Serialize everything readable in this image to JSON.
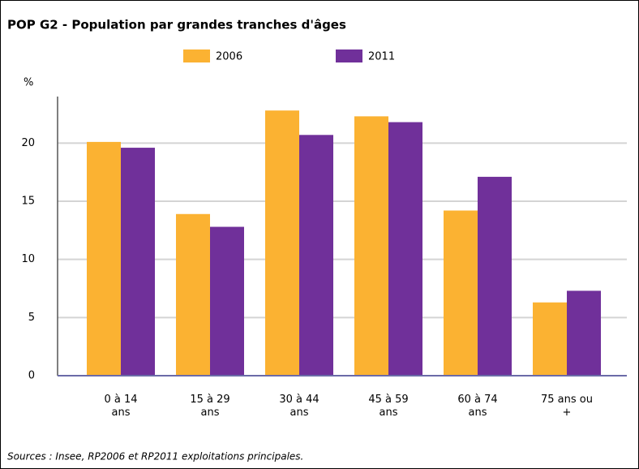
{
  "chart_data": {
    "type": "bar",
    "title": "POP G2 - Population par grandes tranches d'âges",
    "y_label": "%",
    "categories": [
      "0 à 14 ans",
      "15 à 29 ans",
      "30 à 44 ans",
      "45 à 59 ans",
      "60 à 74 ans",
      "75 ans ou +"
    ],
    "series": [
      {
        "name": "2006",
        "color": "#fbb232",
        "values": [
          20.1,
          13.9,
          22.8,
          22.3,
          14.2,
          6.3
        ]
      },
      {
        "name": "2011",
        "color": "#70309a",
        "values": [
          19.6,
          12.8,
          20.7,
          21.8,
          17.1,
          7.3
        ]
      }
    ],
    "ylim": [
      0,
      24
    ],
    "yticks": [
      0,
      5,
      10,
      15,
      20
    ],
    "grid": true,
    "legend": "top",
    "source": "Sources : Insee, RP2006 et RP2011 exploitations principales."
  }
}
